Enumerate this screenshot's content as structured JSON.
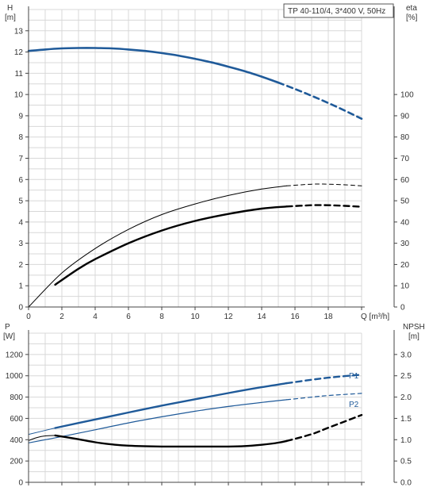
{
  "chart_data": [
    {
      "type": "line",
      "title": "TP 40-110/4, 3*400 V, 50Hz",
      "xlabel": "Q [m³/h]",
      "x_ticks": [
        "0",
        "2",
        "4",
        "6",
        "8",
        "10",
        "12",
        "14",
        "16",
        "18",
        "Q [m³/h]"
      ],
      "ylabel_left": {
        "name": "H",
        "unit": "[m]"
      },
      "ylabel_right": {
        "name": "eta",
        "unit": "[%]"
      },
      "xlim": [
        0,
        20
      ],
      "ylim_left": [
        0,
        14
      ],
      "ylim_right": [
        0,
        140
      ],
      "left_ticks": [
        "0",
        "1",
        "2",
        "3",
        "4",
        "5",
        "6",
        "7",
        "8",
        "9",
        "10",
        "11",
        "12",
        "13"
      ],
      "right_ticks": [
        "0",
        "10",
        "20",
        "30",
        "40",
        "50",
        "60",
        "70",
        "80",
        "90",
        "100"
      ],
      "grid": true,
      "colors": {
        "head": "#1f5a99",
        "eta": "#000000"
      },
      "series": [
        {
          "axis": "left",
          "style": "head-solid",
          "x": [
            0,
            1,
            2,
            3,
            4,
            5,
            6,
            7,
            8,
            9,
            10,
            11,
            12,
            13,
            14,
            15
          ],
          "y": [
            12.05,
            12.12,
            12.17,
            12.19,
            12.19,
            12.17,
            12.12,
            12.05,
            11.95,
            11.83,
            11.68,
            11.51,
            11.31,
            11.09,
            10.84,
            10.56
          ]
        },
        {
          "axis": "left",
          "style": "head-dash",
          "x": [
            15,
            16,
            17,
            18,
            19,
            20
          ],
          "y": [
            10.56,
            10.26,
            9.94,
            9.6,
            9.24,
            8.86
          ]
        },
        {
          "axis": "right",
          "style": "eta-thin-solid",
          "x": [
            0,
            2,
            4,
            6,
            8,
            10,
            12,
            14,
            15.5
          ],
          "y": [
            0,
            16,
            27.5,
            36.5,
            43.5,
            48.5,
            52.5,
            55.5,
            57
          ]
        },
        {
          "axis": "right",
          "style": "eta-thin-dash",
          "x": [
            15.5,
            17,
            18,
            19,
            20
          ],
          "y": [
            57,
            57.8,
            57.8,
            57.5,
            57
          ]
        },
        {
          "axis": "right",
          "style": "eta-thick-solid",
          "x": [
            1.6,
            3,
            4,
            6,
            8,
            10,
            12,
            14,
            15.5
          ],
          "y": [
            10.5,
            18,
            22.5,
            30,
            36,
            40.5,
            43.8,
            46.3,
            47.3
          ]
        },
        {
          "axis": "right",
          "style": "eta-thick-dash",
          "x": [
            15.5,
            17,
            18,
            19,
            20
          ],
          "y": [
            47.3,
            47.9,
            47.9,
            47.6,
            47.2
          ]
        }
      ]
    },
    {
      "type": "line",
      "xlim": [
        0,
        20
      ],
      "ylabel_left": {
        "name": "P",
        "unit": "[W]"
      },
      "ylabel_right": {
        "name": "NPSH",
        "unit": "[m]"
      },
      "ylim_left": [
        0,
        1400
      ],
      "ylim_right": [
        0,
        3.5
      ],
      "left_ticks": [
        "0",
        "200",
        "400",
        "600",
        "800",
        "1000",
        "1200"
      ],
      "right_ticks": [
        "0.0",
        "0.5",
        "1.0",
        "1.5",
        "2.0",
        "2.5",
        "3.0"
      ],
      "grid": true,
      "colors": {
        "p1": "#1f5a99",
        "p2": "#1f5a99",
        "npsh": "#000000"
      },
      "series": [
        {
          "name": "P1",
          "axis": "left",
          "style": "p1-thin-start",
          "x": [
            0,
            1.6
          ],
          "y": [
            450,
            510
          ]
        },
        {
          "name": "P1",
          "axis": "left",
          "style": "p1-solid",
          "x": [
            1.6,
            4,
            6,
            8,
            10,
            12,
            14,
            15.5
          ],
          "y": [
            510,
            590,
            655,
            720,
            780,
            838,
            893,
            930
          ]
        },
        {
          "name": "P1",
          "axis": "left",
          "style": "p1-dash",
          "x": [
            15.5,
            17,
            18,
            19,
            20
          ],
          "y": [
            930,
            963,
            982,
            997,
            1010
          ]
        },
        {
          "name": "P2",
          "axis": "left",
          "style": "p2-solid",
          "x": [
            0,
            2,
            4,
            6,
            8,
            10,
            12,
            14,
            15.5
          ],
          "y": [
            370,
            430,
            493,
            558,
            615,
            667,
            712,
            750,
            775
          ]
        },
        {
          "name": "P2",
          "axis": "left",
          "style": "p2-dash",
          "x": [
            15.5,
            17,
            18,
            19,
            20
          ],
          "y": [
            775,
            800,
            815,
            825,
            835
          ]
        },
        {
          "axis": "right",
          "style": "npsh-thin-start",
          "x": [
            0,
            0.5,
            1,
            1.6
          ],
          "y": [
            0.98,
            1.05,
            1.09,
            1.1
          ]
        },
        {
          "axis": "right",
          "style": "npsh-thick-solid",
          "x": [
            1.6,
            3,
            4,
            5,
            6,
            8,
            10,
            12,
            13,
            14,
            15,
            15.5
          ],
          "y": [
            1.1,
            1.01,
            0.94,
            0.89,
            0.86,
            0.84,
            0.84,
            0.84,
            0.85,
            0.88,
            0.93,
            0.97
          ]
        },
        {
          "axis": "right",
          "style": "npsh-thick-dash",
          "x": [
            15.5,
            17,
            18,
            19,
            20
          ],
          "y": [
            0.97,
            1.13,
            1.28,
            1.43,
            1.58
          ]
        }
      ]
    }
  ]
}
